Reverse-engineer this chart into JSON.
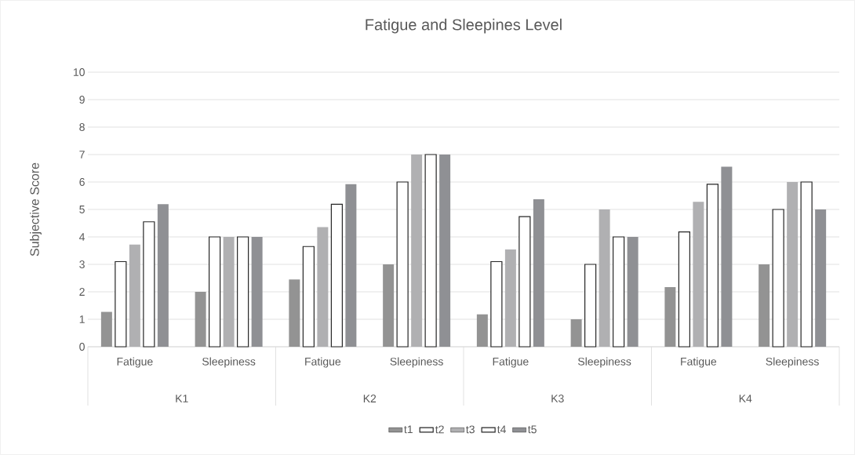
{
  "chart_data": {
    "type": "bar",
    "title": "Fatigue and Sleepines Level",
    "ylabel": "Subjective Score",
    "categories": [
      "Fatigue",
      "Sleepiness",
      "Fatigue",
      "Sleepiness",
      "Fatigue",
      "Sleepiness",
      "Fatigue",
      "Sleepiness"
    ],
    "annotations": [
      "K1",
      "K2",
      "K3",
      "K4"
    ],
    "series": [
      {
        "name": "t1",
        "color": "#939393",
        "values": [
          1.27,
          2,
          2.45,
          3,
          1.18,
          1,
          2.17,
          3
        ]
      },
      {
        "name": "t2",
        "color": "#ffffff",
        "values": [
          3.1,
          4,
          3.65,
          6,
          3.1,
          3,
          4.18,
          5
        ]
      },
      {
        "name": "t3",
        "color": "#b0b0b2",
        "values": [
          3.72,
          4,
          4.36,
          7,
          3.54,
          5,
          5.28,
          6
        ]
      },
      {
        "name": "t4",
        "color": "#ffffff",
        "values": [
          4.55,
          4,
          5.19,
          7,
          4.74,
          4,
          5.92,
          6
        ]
      },
      {
        "name": "t5",
        "color": "#8f9094",
        "values": [
          5.19,
          4,
          5.92,
          7,
          5.37,
          4,
          6.56,
          5
        ]
      }
    ],
    "ylim": [
      0,
      10
    ],
    "yticks": [
      0,
      1,
      2,
      3,
      4,
      5,
      6,
      7,
      8,
      9,
      10
    ],
    "grid": "y",
    "legend": "bottom"
  }
}
